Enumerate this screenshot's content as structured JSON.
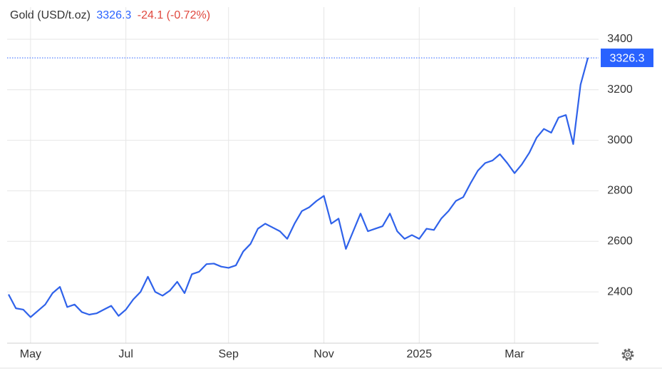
{
  "chart_data": {
    "type": "line",
    "title": "Gold (USD/t.oz)",
    "last_value": 3326.3,
    "change": "-24.1 (-0.72%)",
    "color": "#2f62ea",
    "last_color": "#2962ff",
    "change_color": "#e0483e",
    "categories": [
      null,
      null,
      null,
      "May",
      null,
      null,
      null,
      null,
      null,
      null,
      null,
      null,
      null,
      null,
      null,
      null,
      "Jul",
      null,
      null,
      null,
      null,
      null,
      null,
      null,
      null,
      null,
      null,
      null,
      null,
      null,
      "Sep",
      null,
      null,
      null,
      null,
      null,
      null,
      null,
      null,
      null,
      null,
      null,
      null,
      "Nov",
      null,
      null,
      null,
      null,
      null,
      null,
      null,
      null,
      null,
      null,
      null,
      null,
      "2025",
      null,
      null,
      null,
      null,
      null,
      null,
      null,
      null,
      null,
      null,
      null,
      null,
      "Mar",
      null,
      null,
      null,
      null,
      null,
      null,
      null,
      null,
      null,
      null
    ],
    "values": [
      2390,
      2335,
      2330,
      2300,
      2325,
      2350,
      2395,
      2420,
      2340,
      2350,
      2320,
      2310,
      2315,
      2330,
      2345,
      2305,
      2330,
      2370,
      2400,
      2460,
      2400,
      2385,
      2405,
      2440,
      2395,
      2470,
      2480,
      2510,
      2512,
      2500,
      2495,
      2505,
      2560,
      2590,
      2650,
      2670,
      2655,
      2640,
      2610,
      2670,
      2720,
      2735,
      2760,
      2780,
      2670,
      2690,
      2570,
      2640,
      2710,
      2640,
      2650,
      2660,
      2710,
      2640,
      2610,
      2625,
      2610,
      2650,
      2645,
      2690,
      2720,
      2760,
      2775,
      2830,
      2880,
      2910,
      2920,
      2945,
      2910,
      2870,
      2905,
      2950,
      3010,
      3045,
      3030,
      3090,
      3100,
      2985,
      3220,
      3326.3
    ],
    "ylim": [
      2197,
      3527
    ],
    "yticks": [
      2400,
      2600,
      2800,
      3000,
      3200,
      3400
    ],
    "grid": true
  }
}
